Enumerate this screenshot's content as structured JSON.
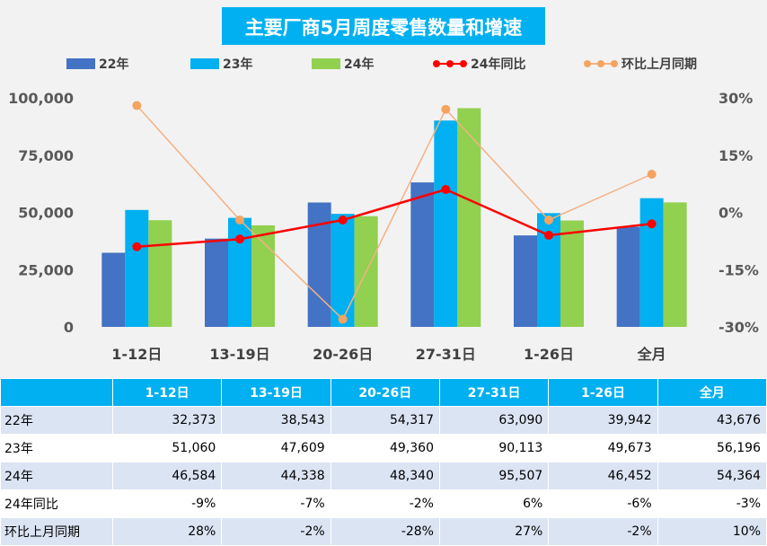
{
  "colors": {
    "s22": "#4472c4",
    "s23": "#00b0f0",
    "s24": "#92d050",
    "yoy": "#ff0000",
    "mom": "#f4b183",
    "mom_marker": "#f4a460",
    "title_bg": "#00b0f0",
    "title_text": "#ffffff"
  },
  "chart_data": {
    "type": "bar",
    "title": "主要厂商5月周度零售数量和增速",
    "categories": [
      "1-12日",
      "13-19日",
      "20-26日",
      "27-31日",
      "1-26日",
      "全月"
    ],
    "series": [
      {
        "name": "22年",
        "kind": "bar",
        "axis": "left",
        "values": [
          32373,
          38543,
          54317,
          63090,
          39942,
          43676
        ]
      },
      {
        "name": "23年",
        "kind": "bar",
        "axis": "left",
        "values": [
          51060,
          47609,
          49360,
          90113,
          49673,
          56196
        ]
      },
      {
        "name": "24年",
        "kind": "bar",
        "axis": "left",
        "values": [
          46584,
          44338,
          48340,
          95507,
          46452,
          54364
        ]
      },
      {
        "name": "24年同比",
        "kind": "line",
        "axis": "right",
        "values": [
          -9,
          -7,
          -2,
          6,
          -6,
          -3
        ]
      },
      {
        "name": "环比上月同期",
        "kind": "line",
        "axis": "right",
        "values": [
          28,
          -2,
          -28,
          27,
          -2,
          10
        ]
      }
    ],
    "y_left": {
      "min": 0,
      "max": 100000,
      "ticks": [
        "0",
        "25,000",
        "50,000",
        "75,000",
        "100,000"
      ]
    },
    "y_right": {
      "min": -30,
      "max": 30,
      "ticks": [
        "-30%",
        "-15%",
        "0%",
        "15%",
        "30%"
      ]
    },
    "legend_position": "top",
    "grid": false
  },
  "table": {
    "header": [
      "",
      "1-12日",
      "13-19日",
      "20-26日",
      "27-31日",
      "1-26日",
      "全月"
    ],
    "rows": [
      [
        "22年",
        "32,373",
        "38,543",
        "54,317",
        "63,090",
        "39,942",
        "43,676"
      ],
      [
        "23年",
        "51,060",
        "47,609",
        "49,360",
        "90,113",
        "49,673",
        "56,196"
      ],
      [
        "24年",
        "46,584",
        "44,338",
        "48,340",
        "95,507",
        "46,452",
        "54,364"
      ],
      [
        "24年同比",
        "-9%",
        "-7%",
        "-2%",
        "6%",
        "-6%",
        "-3%"
      ],
      [
        "环比上月同期",
        "28%",
        "-2%",
        "-28%",
        "27%",
        "-2%",
        "10%"
      ]
    ]
  }
}
